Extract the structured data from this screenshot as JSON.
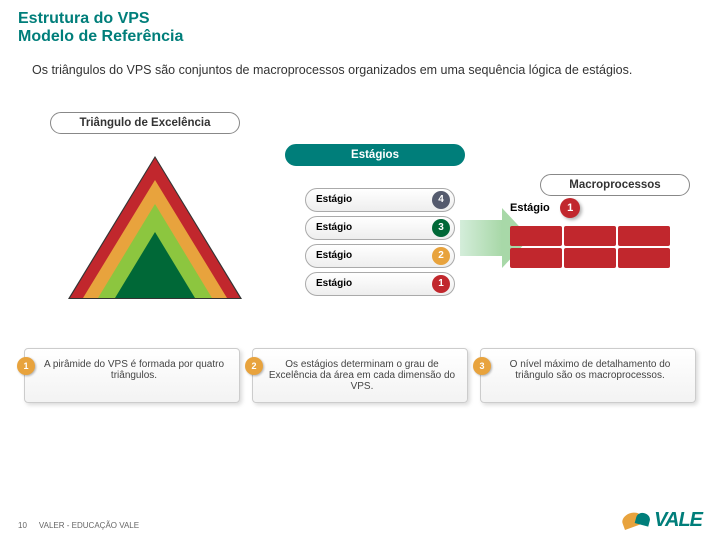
{
  "header": {
    "title1": "Estrutura do VPS",
    "title2": "Modelo de Referência"
  },
  "intro": "Os triângulos do VPS são conjuntos de macroprocessos organizados em uma sequência lógica de estágios.",
  "banners": {
    "b1": "Triângulo de Excelência",
    "b2": "Estágios",
    "b3": "Macroprocessos"
  },
  "pyramid": {
    "bands": [
      {
        "level": 4,
        "color": "#006837"
      },
      {
        "level": 3,
        "color": "#8cc63f"
      },
      {
        "level": 2,
        "color": "#e8a33d"
      },
      {
        "level": 1,
        "color": "#c1272d"
      }
    ]
  },
  "stages": [
    {
      "label": "Estágio",
      "num": "4",
      "color": "#555b6e"
    },
    {
      "label": "Estágio",
      "num": "3",
      "color": "#006837"
    },
    {
      "label": "Estágio",
      "num": "2",
      "color": "#e8a33d"
    },
    {
      "label": "Estágio",
      "num": "1",
      "color": "#c1272d"
    }
  ],
  "macro": {
    "title": "Estágio",
    "num": "1",
    "cells": 6,
    "cell_color": "#c1272d"
  },
  "notes": [
    {
      "n": "1",
      "text": "A pirâmide do VPS é formada por quatro triângulos."
    },
    {
      "n": "2",
      "text": "Os estágios determinam o grau de Excelência da área em cada dimensão do VPS."
    },
    {
      "n": "3",
      "text": "O nível máximo de detalhamento do triângulo são os macroprocessos."
    }
  ],
  "footer": {
    "page": "10",
    "text": "VALER - EDUCAÇÃO VALE"
  },
  "logo": "VALE",
  "colors": {
    "brand": "#007e7a",
    "accent": "#e8a33d"
  }
}
